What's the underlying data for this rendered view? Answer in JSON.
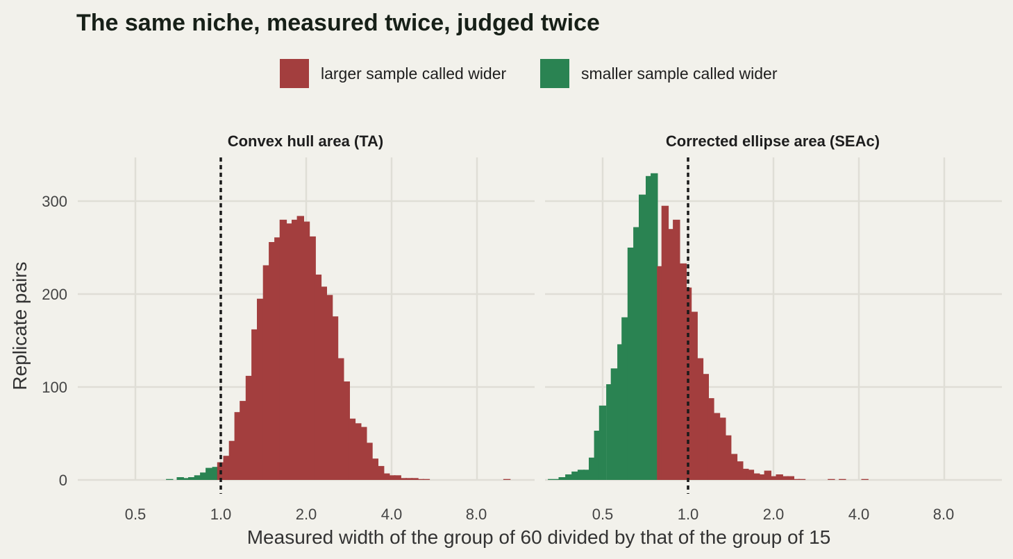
{
  "colors": {
    "larger": "#a33e3e",
    "smaller": "#2a8352",
    "background": "#f2f1eb"
  },
  "chart_data": {
    "type": "bar",
    "title": "The same niche, measured twice, judged twice",
    "xlabel": "Measured width of the group of 60 divided by that of the group of 15",
    "ylabel": "Replicate pairs",
    "x_scale": "log2",
    "x_ticks": [
      "0.5",
      "1.0",
      "2.0",
      "4.0",
      "8.0"
    ],
    "x_tick_values": [
      0.5,
      1,
      2,
      4,
      8
    ],
    "y_ticks": [
      "0",
      "100",
      "200",
      "300"
    ],
    "y_tick_values": [
      0,
      100,
      200,
      300
    ],
    "ylim": [
      0,
      346
    ],
    "reference_line_x": 1.0,
    "legend": {
      "position": "top",
      "entries": [
        {
          "key": "larger",
          "label": "larger sample called wider"
        },
        {
          "key": "smaller",
          "label": "smaller sample called wider"
        }
      ]
    },
    "panels": [
      {
        "title": "Convex hull area (TA)",
        "bins": [
          {
            "x": 0.66,
            "y": 1,
            "s": "smaller"
          },
          {
            "x": 0.72,
            "y": 3,
            "s": "smaller"
          },
          {
            "x": 0.76,
            "y": 2,
            "s": "smaller"
          },
          {
            "x": 0.79,
            "y": 3,
            "s": "smaller"
          },
          {
            "x": 0.83,
            "y": 5,
            "s": "smaller"
          },
          {
            "x": 0.87,
            "y": 8,
            "s": "smaller"
          },
          {
            "x": 0.91,
            "y": 13,
            "s": "smaller"
          },
          {
            "x": 0.96,
            "y": 14,
            "s": "smaller"
          },
          {
            "x": 1.0,
            "y": 19,
            "s": "larger"
          },
          {
            "x": 1.05,
            "y": 26,
            "s": "larger"
          },
          {
            "x": 1.1,
            "y": 42,
            "s": "larger"
          },
          {
            "x": 1.15,
            "y": 73,
            "s": "larger"
          },
          {
            "x": 1.2,
            "y": 85,
            "s": "larger"
          },
          {
            "x": 1.26,
            "y": 112,
            "s": "larger"
          },
          {
            "x": 1.32,
            "y": 162,
            "s": "larger"
          },
          {
            "x": 1.38,
            "y": 195,
            "s": "larger"
          },
          {
            "x": 1.45,
            "y": 231,
            "s": "larger"
          },
          {
            "x": 1.52,
            "y": 256,
            "s": "larger"
          },
          {
            "x": 1.59,
            "y": 261,
            "s": "larger"
          },
          {
            "x": 1.66,
            "y": 280,
            "s": "larger"
          },
          {
            "x": 1.74,
            "y": 276,
            "s": "larger"
          },
          {
            "x": 1.83,
            "y": 280,
            "s": "larger"
          },
          {
            "x": 1.91,
            "y": 284,
            "s": "larger"
          },
          {
            "x": 2.0,
            "y": 278,
            "s": "larger"
          },
          {
            "x": 2.1,
            "y": 262,
            "s": "larger"
          },
          {
            "x": 2.2,
            "y": 221,
            "s": "larger"
          },
          {
            "x": 2.3,
            "y": 208,
            "s": "larger"
          },
          {
            "x": 2.41,
            "y": 199,
            "s": "larger"
          },
          {
            "x": 2.52,
            "y": 176,
            "s": "larger"
          },
          {
            "x": 2.64,
            "y": 131,
            "s": "larger"
          },
          {
            "x": 2.77,
            "y": 106,
            "s": "larger"
          },
          {
            "x": 2.9,
            "y": 66,
            "s": "larger"
          },
          {
            "x": 3.04,
            "y": 61,
            "s": "larger"
          },
          {
            "x": 3.18,
            "y": 57,
            "s": "larger"
          },
          {
            "x": 3.33,
            "y": 40,
            "s": "larger"
          },
          {
            "x": 3.49,
            "y": 23,
            "s": "larger"
          },
          {
            "x": 3.66,
            "y": 15,
            "s": "larger"
          },
          {
            "x": 3.83,
            "y": 7,
            "s": "larger"
          },
          {
            "x": 4.01,
            "y": 5,
            "s": "larger"
          },
          {
            "x": 4.2,
            "y": 5,
            "s": "larger"
          },
          {
            "x": 4.4,
            "y": 2,
            "s": "larger"
          },
          {
            "x": 4.61,
            "y": 2,
            "s": "larger"
          },
          {
            "x": 4.83,
            "y": 2,
            "s": "larger"
          },
          {
            "x": 5.06,
            "y": 1,
            "s": "larger"
          },
          {
            "x": 5.3,
            "y": 1,
            "s": "larger"
          },
          {
            "x": 10.2,
            "y": 1,
            "s": "larger"
          }
        ]
      },
      {
        "title": "Corrected ellipse area (SEAc)",
        "bins": [
          {
            "x": 0.33,
            "y": 1,
            "s": "smaller"
          },
          {
            "x": 0.35,
            "y": 1,
            "s": "smaller"
          },
          {
            "x": 0.36,
            "y": 3,
            "s": "smaller"
          },
          {
            "x": 0.38,
            "y": 6,
            "s": "smaller"
          },
          {
            "x": 0.4,
            "y": 9,
            "s": "smaller"
          },
          {
            "x": 0.42,
            "y": 11,
            "s": "smaller"
          },
          {
            "x": 0.44,
            "y": 11,
            "s": "smaller"
          },
          {
            "x": 0.46,
            "y": 24,
            "s": "smaller"
          },
          {
            "x": 0.48,
            "y": 53,
            "s": "smaller"
          },
          {
            "x": 0.5,
            "y": 80,
            "s": "smaller"
          },
          {
            "x": 0.53,
            "y": 103,
            "s": "smaller"
          },
          {
            "x": 0.55,
            "y": 120,
            "s": "smaller"
          },
          {
            "x": 0.58,
            "y": 146,
            "s": "smaller"
          },
          {
            "x": 0.6,
            "y": 175,
            "s": "smaller"
          },
          {
            "x": 0.63,
            "y": 250,
            "s": "smaller"
          },
          {
            "x": 0.66,
            "y": 272,
            "s": "smaller"
          },
          {
            "x": 0.69,
            "y": 307,
            "s": "smaller"
          },
          {
            "x": 0.73,
            "y": 327,
            "s": "smaller"
          },
          {
            "x": 0.76,
            "y": 330,
            "s": "smaller"
          },
          {
            "x": 0.8,
            "y": 100,
            "s": "smaller"
          },
          {
            "x": 0.8,
            "y": 230,
            "s": "larger"
          },
          {
            "x": 0.83,
            "y": 295,
            "s": "larger"
          },
          {
            "x": 0.87,
            "y": 270,
            "s": "larger"
          },
          {
            "x": 0.91,
            "y": 280,
            "s": "larger"
          },
          {
            "x": 0.96,
            "y": 233,
            "s": "larger"
          },
          {
            "x": 1.0,
            "y": 207,
            "s": "larger"
          },
          {
            "x": 1.05,
            "y": 181,
            "s": "larger"
          },
          {
            "x": 1.1,
            "y": 131,
            "s": "larger"
          },
          {
            "x": 1.15,
            "y": 114,
            "s": "larger"
          },
          {
            "x": 1.2,
            "y": 88,
            "s": "larger"
          },
          {
            "x": 1.26,
            "y": 72,
            "s": "larger"
          },
          {
            "x": 1.32,
            "y": 67,
            "s": "larger"
          },
          {
            "x": 1.38,
            "y": 48,
            "s": "larger"
          },
          {
            "x": 1.45,
            "y": 28,
            "s": "larger"
          },
          {
            "x": 1.52,
            "y": 20,
            "s": "larger"
          },
          {
            "x": 1.59,
            "y": 12,
            "s": "larger"
          },
          {
            "x": 1.66,
            "y": 11,
            "s": "larger"
          },
          {
            "x": 1.74,
            "y": 7,
            "s": "larger"
          },
          {
            "x": 1.83,
            "y": 6,
            "s": "larger"
          },
          {
            "x": 1.91,
            "y": 10,
            "s": "larger"
          },
          {
            "x": 2.0,
            "y": 4,
            "s": "larger"
          },
          {
            "x": 2.1,
            "y": 6,
            "s": "larger"
          },
          {
            "x": 2.2,
            "y": 4,
            "s": "larger"
          },
          {
            "x": 2.3,
            "y": 4,
            "s": "larger"
          },
          {
            "x": 2.41,
            "y": 1,
            "s": "larger"
          },
          {
            "x": 2.52,
            "y": 1,
            "s": "larger"
          },
          {
            "x": 3.2,
            "y": 1,
            "s": "larger"
          },
          {
            "x": 3.5,
            "y": 1,
            "s": "larger"
          },
          {
            "x": 4.2,
            "y": 1,
            "s": "larger"
          }
        ]
      }
    ]
  }
}
